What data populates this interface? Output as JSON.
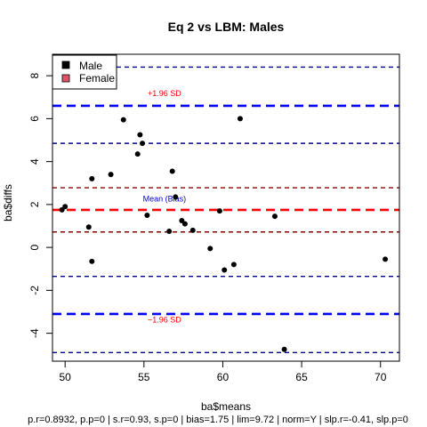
{
  "chart_data": {
    "type": "scatter",
    "title": "Eq 2 vs LBM: Males",
    "xlabel": "ba$means",
    "ylabel": "ba$diffs",
    "xlim": [
      49.2,
      71.2
    ],
    "ylim": [
      -5.3,
      9.0
    ],
    "x_ticks": [
      50,
      55,
      60,
      65,
      70
    ],
    "y_ticks": [
      -4,
      -2,
      0,
      2,
      4,
      6,
      8
    ],
    "grid": false,
    "legend": {
      "position": "top-left",
      "items": [
        {
          "label": "Male",
          "color": "#000000"
        },
        {
          "label": "Female",
          "color": "#df536b"
        }
      ]
    },
    "series": [
      {
        "name": "Male",
        "color": "#000000",
        "points": [
          [
            49.8,
            1.75
          ],
          [
            50.0,
            1.9
          ],
          [
            51.5,
            0.95
          ],
          [
            51.7,
            -0.65
          ],
          [
            51.7,
            3.2
          ],
          [
            52.9,
            3.4
          ],
          [
            53.7,
            5.95
          ],
          [
            54.6,
            4.35
          ],
          [
            54.75,
            5.25
          ],
          [
            54.9,
            4.85
          ],
          [
            55.2,
            1.5
          ],
          [
            56.6,
            0.75
          ],
          [
            56.8,
            3.55
          ],
          [
            57.0,
            2.35
          ],
          [
            57.4,
            1.25
          ],
          [
            57.6,
            1.1
          ],
          [
            58.1,
            0.8
          ],
          [
            59.2,
            -0.05
          ],
          [
            59.8,
            1.7
          ],
          [
            60.1,
            -1.05
          ],
          [
            60.7,
            -0.8
          ],
          [
            61.1,
            6.0
          ],
          [
            63.3,
            1.45
          ],
          [
            63.9,
            -4.75
          ],
          [
            70.3,
            -0.55
          ]
        ]
      }
    ],
    "reference_lines": [
      {
        "role": "upper-ci-upper",
        "y": 8.4,
        "color": "#00008b",
        "dash": "dashed",
        "width": "thin"
      },
      {
        "role": "upper-loa",
        "y": 6.6,
        "color": "#0000ff",
        "dash": "dashed",
        "width": "thick"
      },
      {
        "role": "upper-ci-lower",
        "y": 4.85,
        "color": "#00008b",
        "dash": "dashed",
        "width": "thin"
      },
      {
        "role": "bias-ci-upper",
        "y": 2.78,
        "color": "#8b0000",
        "dash": "dashed",
        "width": "thin"
      },
      {
        "role": "bias",
        "y": 1.75,
        "color": "#ff0000",
        "dash": "dashed",
        "width": "thick"
      },
      {
        "role": "bias-ci-lower",
        "y": 0.72,
        "color": "#8b0000",
        "dash": "dashed",
        "width": "thin"
      },
      {
        "role": "lower-ci-upper",
        "y": -1.35,
        "color": "#00008b",
        "dash": "dashed",
        "width": "thin"
      },
      {
        "role": "lower-loa",
        "y": -3.1,
        "color": "#0000ff",
        "dash": "dashed",
        "width": "thick"
      },
      {
        "role": "lower-ci-lower",
        "y": -4.9,
        "color": "#00008b",
        "dash": "dashed",
        "width": "thin"
      }
    ],
    "annotations": [
      {
        "text": "+1.96 SD",
        "x": 56.3,
        "y": 7.05,
        "color": "#ff0000"
      },
      {
        "text": "Mean (Bias)",
        "x": 56.3,
        "y": 2.15,
        "color": "#0000cd"
      },
      {
        "text": "−1.96 SD",
        "x": 56.3,
        "y": -3.5,
        "color": "#ff0000"
      }
    ],
    "footer": "p.r=0.8932, p.p=0 | s.r=0.93, s.p=0 | bias=1.75 | lim=9.72 | norm=Y | slp.r=-0.41, slp.p=0"
  }
}
